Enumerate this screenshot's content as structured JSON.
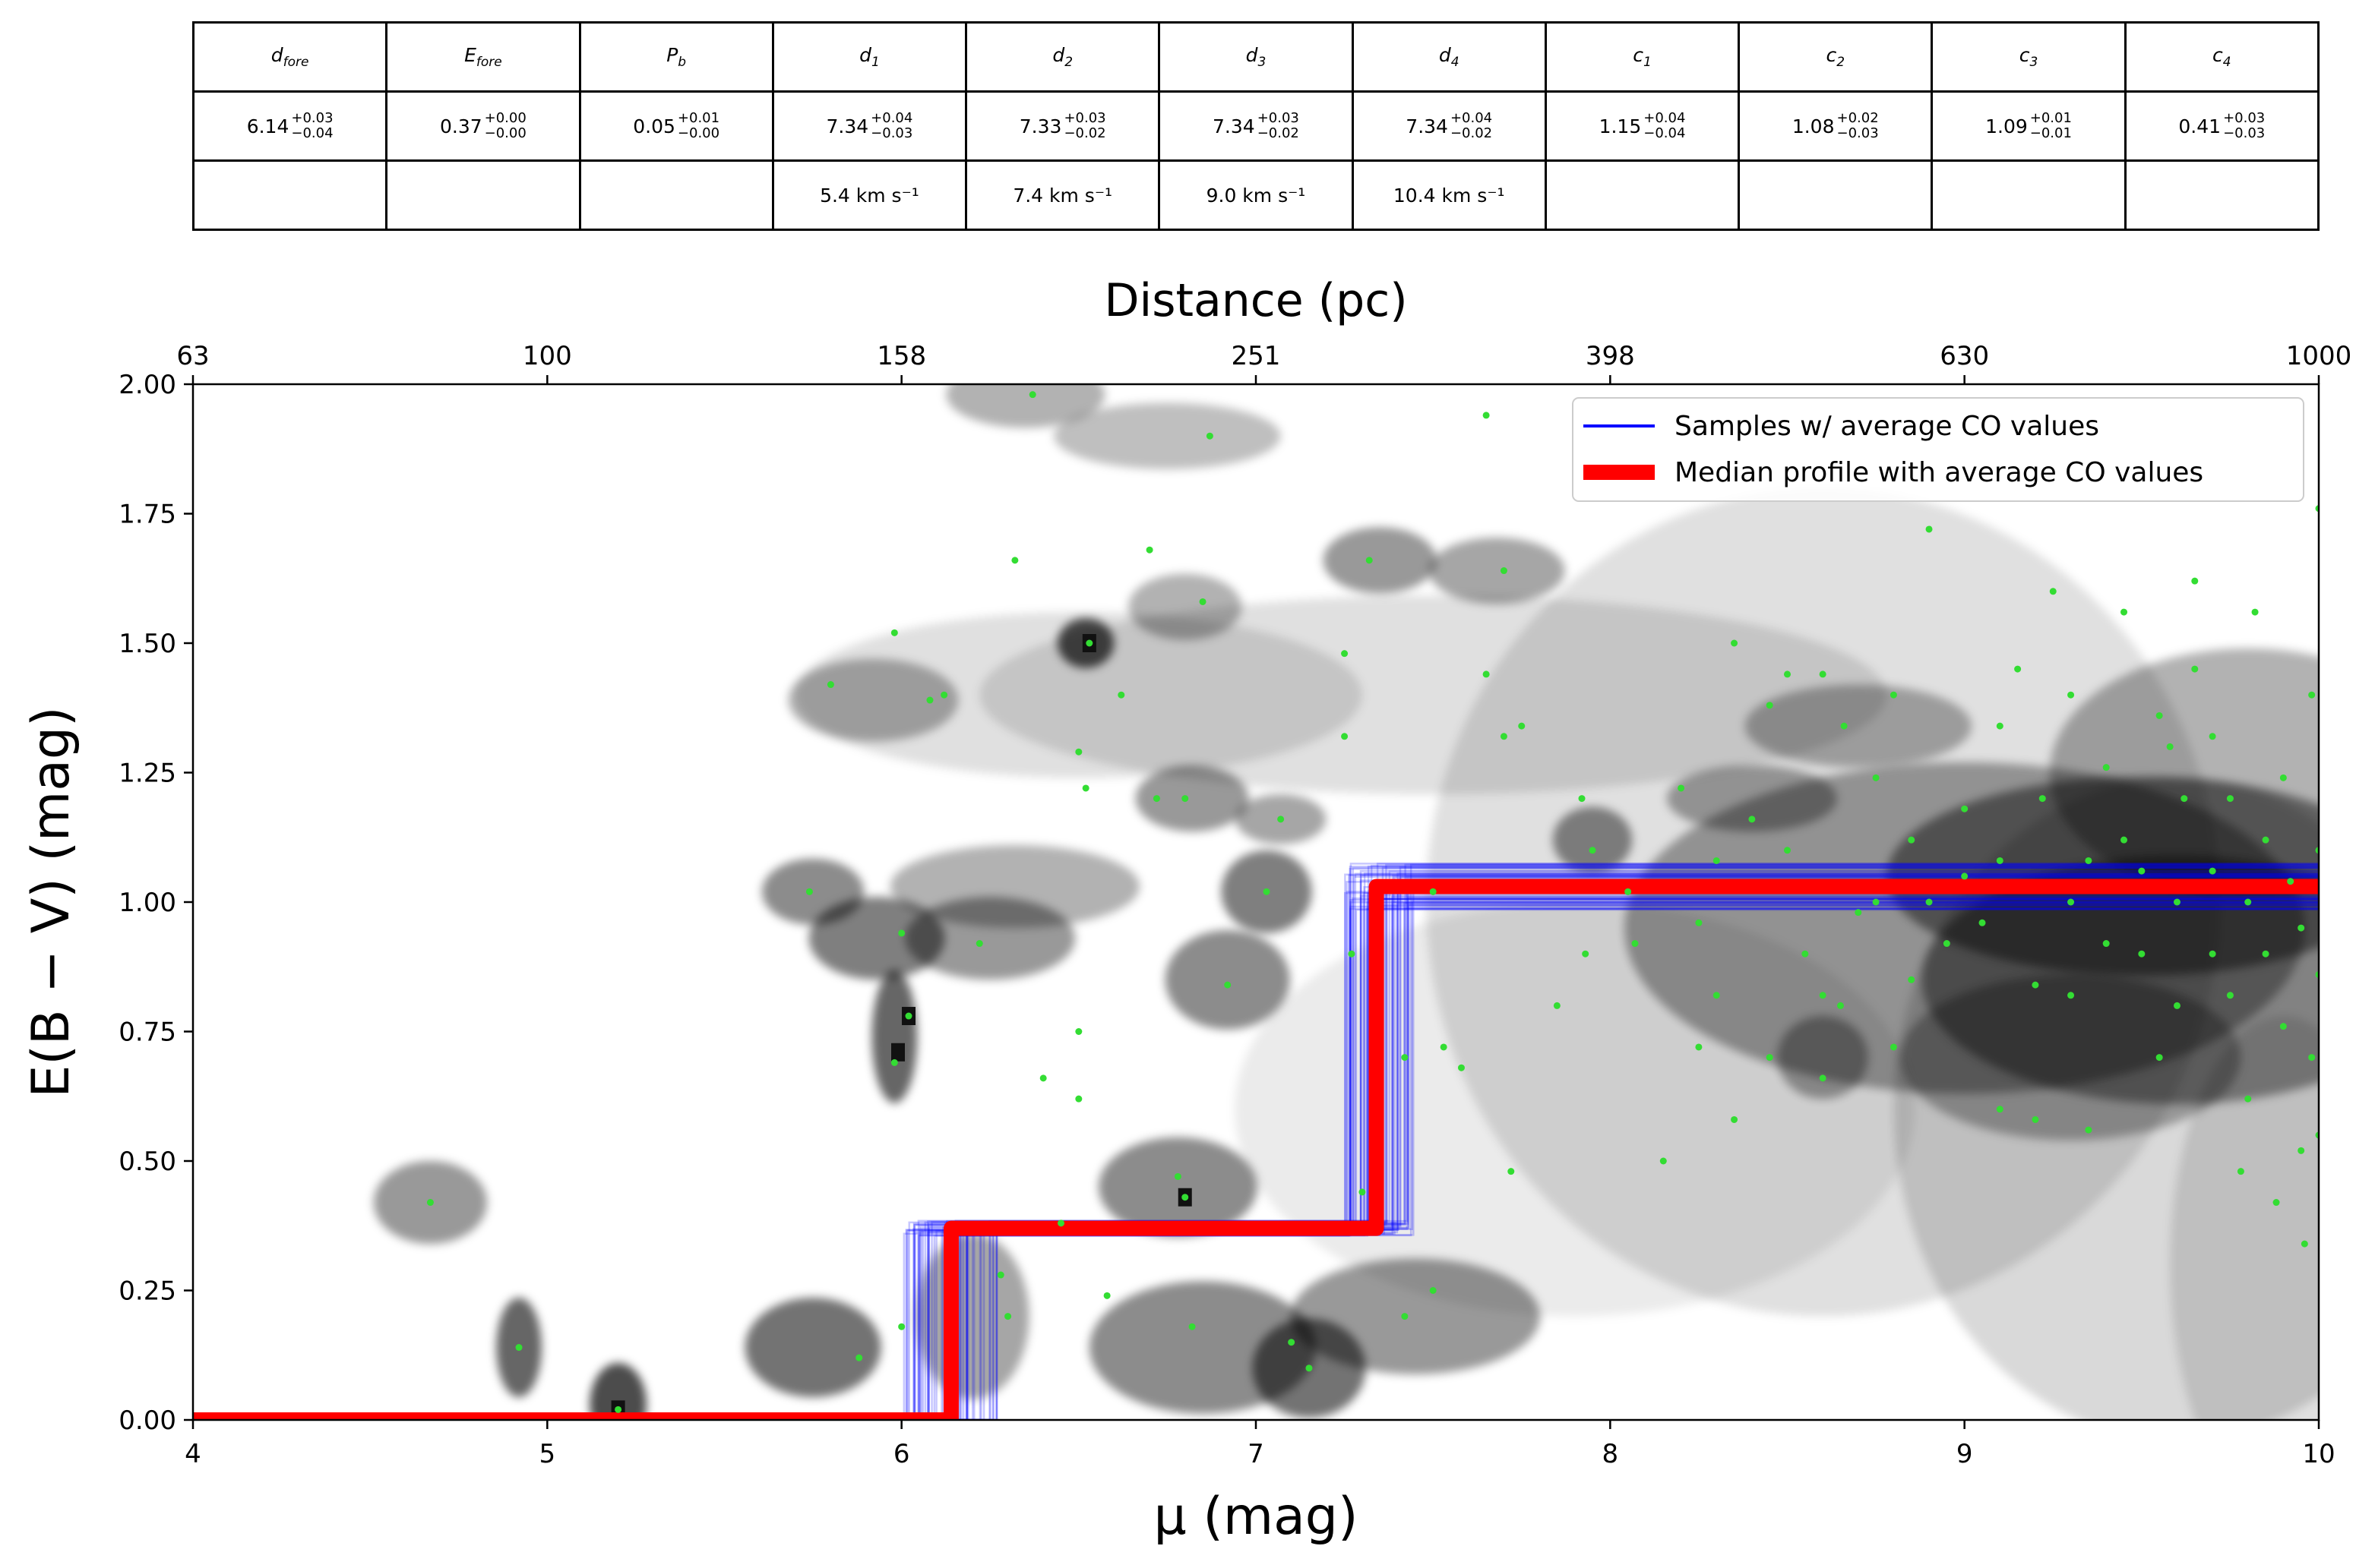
{
  "table": {
    "headers": [
      {
        "sym": "d",
        "sub": "fore"
      },
      {
        "sym": "E",
        "sub": "fore"
      },
      {
        "sym": "P",
        "sub": "b"
      },
      {
        "sym": "d",
        "sub": "1"
      },
      {
        "sym": "d",
        "sub": "2"
      },
      {
        "sym": "d",
        "sub": "3"
      },
      {
        "sym": "d",
        "sub": "4"
      },
      {
        "sym": "c",
        "sub": "1"
      },
      {
        "sym": "c",
        "sub": "2"
      },
      {
        "sym": "c",
        "sub": "3"
      },
      {
        "sym": "c",
        "sub": "4"
      }
    ],
    "values": [
      {
        "v": "6.14",
        "plus": "+0.03",
        "minus": "−0.04"
      },
      {
        "v": "0.37",
        "plus": "+0.00",
        "minus": "−0.00"
      },
      {
        "v": "0.05",
        "plus": "+0.01",
        "minus": "−0.00"
      },
      {
        "v": "7.34",
        "plus": "+0.04",
        "minus": "−0.03"
      },
      {
        "v": "7.33",
        "plus": "+0.03",
        "minus": "−0.02"
      },
      {
        "v": "7.34",
        "plus": "+0.03",
        "minus": "−0.02"
      },
      {
        "v": "7.34",
        "plus": "+0.04",
        "minus": "−0.02"
      },
      {
        "v": "1.15",
        "plus": "+0.04",
        "minus": "−0.04"
      },
      {
        "v": "1.08",
        "plus": "+0.02",
        "minus": "−0.03"
      },
      {
        "v": "1.09",
        "plus": "+0.01",
        "minus": "−0.01"
      },
      {
        "v": "0.41",
        "plus": "+0.03",
        "minus": "−0.03"
      }
    ],
    "velocities": [
      "",
      "",
      "",
      "5.4 km s⁻¹",
      "7.4 km s⁻¹",
      "9.0 km s⁻¹",
      "10.4 km s⁻¹",
      "",
      "",
      "",
      ""
    ]
  },
  "chart_data": {
    "type": "scatter",
    "xlabel": "μ (mag)",
    "ylabel": "E(B − V) (mag)",
    "top_axis_label": "Distance (pc)",
    "xlim": [
      4,
      10
    ],
    "ylim": [
      0,
      2
    ],
    "x_ticks": [
      "4",
      "5",
      "6",
      "7",
      "8",
      "9",
      "10"
    ],
    "y_ticks": [
      "0.00",
      "0.25",
      "0.50",
      "0.75",
      "1.00",
      "1.25",
      "1.50",
      "1.75",
      "2.00"
    ],
    "top_ticks": [
      "63",
      "100",
      "158",
      "251",
      "398",
      "630",
      "1000"
    ],
    "legend_position": "top-right",
    "colors": {
      "median": "#ff0000",
      "samples": "#0000ff",
      "stars": "#33dd33",
      "density": "#000000"
    },
    "series": [
      {
        "name": "Samples  w/ average CO values",
        "type": "line",
        "steps": [
          {
            "x": 6.14,
            "y": 0.37
          },
          {
            "x": 7.34,
            "y": 1.03
          }
        ]
      },
      {
        "name": "Median profile with average CO values",
        "type": "line",
        "x": [
          4.0,
          6.14,
          6.14,
          7.34,
          7.34,
          10.0
        ],
        "y": [
          0.0,
          0.0,
          0.37,
          0.37,
          1.03,
          1.03
        ]
      }
    ],
    "density_blobs": [
      {
        "x": 4.67,
        "y": 0.42,
        "sx": 0.1,
        "sy": 0.05,
        "a": 0.4
      },
      {
        "x": 4.92,
        "y": 0.14,
        "sx": 0.04,
        "sy": 0.06,
        "a": 0.6
      },
      {
        "x": 5.2,
        "y": 0.03,
        "sx": 0.05,
        "sy": 0.05,
        "a": 0.7
      },
      {
        "x": 5.75,
        "y": 1.02,
        "sx": 0.09,
        "sy": 0.04,
        "a": 0.45
      },
      {
        "x": 5.93,
        "y": 0.93,
        "sx": 0.12,
        "sy": 0.05,
        "a": 0.5
      },
      {
        "x": 5.98,
        "y": 0.74,
        "sx": 0.04,
        "sy": 0.08,
        "a": 0.6
      },
      {
        "x": 5.75,
        "y": 0.14,
        "sx": 0.12,
        "sy": 0.06,
        "a": 0.55
      },
      {
        "x": 5.92,
        "y": 1.39,
        "sx": 0.15,
        "sy": 0.05,
        "a": 0.3
      },
      {
        "x": 6.32,
        "y": 1.03,
        "sx": 0.22,
        "sy": 0.05,
        "a": 0.3
      },
      {
        "x": 6.25,
        "y": 0.93,
        "sx": 0.15,
        "sy": 0.05,
        "a": 0.4
      },
      {
        "x": 6.35,
        "y": 1.98,
        "sx": 0.14,
        "sy": 0.04,
        "a": 0.3
      },
      {
        "x": 6.2,
        "y": 0.2,
        "sx": 0.1,
        "sy": 0.1,
        "a": 0.35
      },
      {
        "x": 6.52,
        "y": 1.5,
        "sx": 0.05,
        "sy": 0.03,
        "a": 0.7
      },
      {
        "x": 6.82,
        "y": 1.2,
        "sx": 0.1,
        "sy": 0.04,
        "a": 0.4
      },
      {
        "x": 6.75,
        "y": 1.9,
        "sx": 0.2,
        "sy": 0.04,
        "a": 0.25
      },
      {
        "x": 6.8,
        "y": 1.57,
        "sx": 0.1,
        "sy": 0.04,
        "a": 0.3
      },
      {
        "x": 6.78,
        "y": 0.45,
        "sx": 0.14,
        "sy": 0.06,
        "a": 0.45
      },
      {
        "x": 6.85,
        "y": 0.14,
        "sx": 0.2,
        "sy": 0.08,
        "a": 0.45
      },
      {
        "x": 6.92,
        "y": 0.85,
        "sx": 0.11,
        "sy": 0.06,
        "a": 0.45
      },
      {
        "x": 7.03,
        "y": 1.02,
        "sx": 0.08,
        "sy": 0.05,
        "a": 0.5
      },
      {
        "x": 7.07,
        "y": 1.16,
        "sx": 0.08,
        "sy": 0.03,
        "a": 0.35
      },
      {
        "x": 7.15,
        "y": 0.1,
        "sx": 0.1,
        "sy": 0.06,
        "a": 0.55
      },
      {
        "x": 7.35,
        "y": 1.66,
        "sx": 0.1,
        "sy": 0.04,
        "a": 0.4
      },
      {
        "x": 7.68,
        "y": 1.64,
        "sx": 0.12,
        "sy": 0.04,
        "a": 0.35
      },
      {
        "x": 7.45,
        "y": 0.2,
        "sx": 0.22,
        "sy": 0.07,
        "a": 0.4
      },
      {
        "x": 7.95,
        "y": 1.12,
        "sx": 0.07,
        "sy": 0.04,
        "a": 0.45
      },
      {
        "x": 8.4,
        "y": 1.2,
        "sx": 0.15,
        "sy": 0.04,
        "a": 0.35
      },
      {
        "x": 8.7,
        "y": 1.34,
        "sx": 0.2,
        "sy": 0.05,
        "a": 0.3
      },
      {
        "x": 8.6,
        "y": 0.7,
        "sx": 0.08,
        "sy": 0.05,
        "a": 0.35
      },
      {
        "x": 9.0,
        "y": 0.95,
        "sx": 0.6,
        "sy": 0.2,
        "a": 0.35
      },
      {
        "x": 9.5,
        "y": 1.05,
        "sx": 0.45,
        "sy": 0.12,
        "a": 0.45
      },
      {
        "x": 9.6,
        "y": 0.85,
        "sx": 0.45,
        "sy": 0.15,
        "a": 0.4
      },
      {
        "x": 9.8,
        "y": 1.25,
        "sx": 0.35,
        "sy": 0.15,
        "a": 0.3
      },
      {
        "x": 9.3,
        "y": 0.7,
        "sx": 0.3,
        "sy": 0.1,
        "a": 0.3
      },
      {
        "x": 8.6,
        "y": 1.0,
        "sx": 0.7,
        "sy": 0.5,
        "a": 0.12
      },
      {
        "x": 9.6,
        "y": 0.6,
        "sx": 0.5,
        "sy": 0.4,
        "a": 0.15
      },
      {
        "x": 7.5,
        "y": 1.4,
        "sx": 0.8,
        "sy": 0.12,
        "a": 0.12
      },
      {
        "x": 6.5,
        "y": 1.4,
        "sx": 0.5,
        "sy": 0.1,
        "a": 0.12
      },
      {
        "x": 7.9,
        "y": 0.6,
        "sx": 0.6,
        "sy": 0.25,
        "a": 0.08
      },
      {
        "x": 9.9,
        "y": 0.3,
        "sx": 0.2,
        "sy": 0.3,
        "a": 0.12
      }
    ],
    "dark_pixels": [
      {
        "x": 6.53,
        "y": 1.5
      },
      {
        "x": 6.02,
        "y": 0.78
      },
      {
        "x": 5.99,
        "y": 0.71
      },
      {
        "x": 6.8,
        "y": 0.43
      },
      {
        "x": 5.2,
        "y": 0.02
      }
    ],
    "stars": [
      [
        4.67,
        0.42
      ],
      [
        4.92,
        0.14
      ],
      [
        5.2,
        0.02
      ],
      [
        5.74,
        1.02
      ],
      [
        5.88,
        0.12
      ],
      [
        5.8,
        1.42
      ],
      [
        5.98,
        1.52
      ],
      [
        6.0,
        0.94
      ],
      [
        5.98,
        0.69
      ],
      [
        6.02,
        0.78
      ],
      [
        6.0,
        0.18
      ],
      [
        6.08,
        1.39
      ],
      [
        6.12,
        1.4
      ],
      [
        6.22,
        0.92
      ],
      [
        6.28,
        0.28
      ],
      [
        6.3,
        0.2
      ],
      [
        6.32,
        1.66
      ],
      [
        6.37,
        1.98
      ],
      [
        6.4,
        0.66
      ],
      [
        6.45,
        0.38
      ],
      [
        6.5,
        1.29
      ],
      [
        6.5,
        0.75
      ],
      [
        6.5,
        0.62
      ],
      [
        6.52,
        1.22
      ],
      [
        6.53,
        1.5
      ],
      [
        6.58,
        0.24
      ],
      [
        6.62,
        1.4
      ],
      [
        6.7,
        1.68
      ],
      [
        6.72,
        1.2
      ],
      [
        6.78,
        0.47
      ],
      [
        6.8,
        0.43
      ],
      [
        6.8,
        1.2
      ],
      [
        6.82,
        0.18
      ],
      [
        6.85,
        1.58
      ],
      [
        6.87,
        1.9
      ],
      [
        6.92,
        0.84
      ],
      [
        7.03,
        1.02
      ],
      [
        7.07,
        1.16
      ],
      [
        7.1,
        0.15
      ],
      [
        7.15,
        0.1
      ],
      [
        7.25,
        1.48
      ],
      [
        7.25,
        1.32
      ],
      [
        7.27,
        0.9
      ],
      [
        7.3,
        0.44
      ],
      [
        7.32,
        1.66
      ],
      [
        7.42,
        0.7
      ],
      [
        7.42,
        0.2
      ],
      [
        7.5,
        0.25
      ],
      [
        7.5,
        1.02
      ],
      [
        7.53,
        0.72
      ],
      [
        7.58,
        0.68
      ],
      [
        7.65,
        1.94
      ],
      [
        7.65,
        1.44
      ],
      [
        7.7,
        1.64
      ],
      [
        7.7,
        1.32
      ],
      [
        7.75,
        1.34
      ],
      [
        7.72,
        0.48
      ],
      [
        7.85,
        0.8
      ],
      [
        7.92,
        1.2
      ],
      [
        7.93,
        0.9
      ],
      [
        7.95,
        1.1
      ],
      [
        8.05,
        1.02
      ],
      [
        8.07,
        0.92
      ],
      [
        8.15,
        0.5
      ],
      [
        8.2,
        1.22
      ],
      [
        8.25,
        0.72
      ],
      [
        8.25,
        0.96
      ],
      [
        8.3,
        1.08
      ],
      [
        8.3,
        0.82
      ],
      [
        8.35,
        0.58
      ],
      [
        8.35,
        1.5
      ],
      [
        8.4,
        1.16
      ],
      [
        8.45,
        1.38
      ],
      [
        8.45,
        0.7
      ],
      [
        8.5,
        1.44
      ],
      [
        8.5,
        1.1
      ],
      [
        8.55,
        0.9
      ],
      [
        8.6,
        1.44
      ],
      [
        8.6,
        0.82
      ],
      [
        8.6,
        0.66
      ],
      [
        8.65,
        0.8
      ],
      [
        8.66,
        1.34
      ],
      [
        8.7,
        0.98
      ],
      [
        8.75,
        1.0
      ],
      [
        8.75,
        1.24
      ],
      [
        8.8,
        1.4
      ],
      [
        8.8,
        0.72
      ],
      [
        8.85,
        1.12
      ],
      [
        8.9,
        1.72
      ],
      [
        8.9,
        1.0
      ],
      [
        8.95,
        0.92
      ],
      [
        9.0,
        1.05
      ],
      [
        9.05,
        0.96
      ],
      [
        9.1,
        1.08
      ],
      [
        9.1,
        0.6
      ],
      [
        9.15,
        1.45
      ],
      [
        9.2,
        0.58
      ],
      [
        9.22,
        1.2
      ],
      [
        9.25,
        1.6
      ],
      [
        9.3,
        1.0
      ],
      [
        9.3,
        0.82
      ],
      [
        9.35,
        1.08
      ],
      [
        9.35,
        0.56
      ],
      [
        9.4,
        0.92
      ],
      [
        9.45,
        1.12
      ],
      [
        9.45,
        1.56
      ],
      [
        9.5,
        0.9
      ],
      [
        9.5,
        1.06
      ],
      [
        9.55,
        0.7
      ],
      [
        9.58,
        1.3
      ],
      [
        9.6,
        1.0
      ],
      [
        9.6,
        0.8
      ],
      [
        9.62,
        1.2
      ],
      [
        9.65,
        1.62
      ],
      [
        9.65,
        1.45
      ],
      [
        9.7,
        0.9
      ],
      [
        9.7,
        1.06
      ],
      [
        9.75,
        0.82
      ],
      [
        9.75,
        1.2
      ],
      [
        9.78,
        0.48
      ],
      [
        9.8,
        1.0
      ],
      [
        9.8,
        0.62
      ],
      [
        9.85,
        1.12
      ],
      [
        9.85,
        0.9
      ],
      [
        9.88,
        0.42
      ],
      [
        9.9,
        1.24
      ],
      [
        9.9,
        0.76
      ],
      [
        9.92,
        1.04
      ],
      [
        9.95,
        0.95
      ],
      [
        9.95,
        0.52
      ],
      [
        9.96,
        0.34
      ],
      [
        9.98,
        0.7
      ],
      [
        10.0,
        1.76
      ],
      [
        10.0,
        1.1
      ],
      [
        10.0,
        0.86
      ],
      [
        10.0,
        0.55
      ],
      [
        9.98,
        1.4
      ],
      [
        9.82,
        1.56
      ],
      [
        9.4,
        1.26
      ],
      [
        9.2,
        0.84
      ],
      [
        9.0,
        1.18
      ],
      [
        8.85,
        0.85
      ],
      [
        9.1,
        1.34
      ],
      [
        9.3,
        1.4
      ],
      [
        9.55,
        1.36
      ],
      [
        9.7,
        1.32
      ]
    ]
  }
}
